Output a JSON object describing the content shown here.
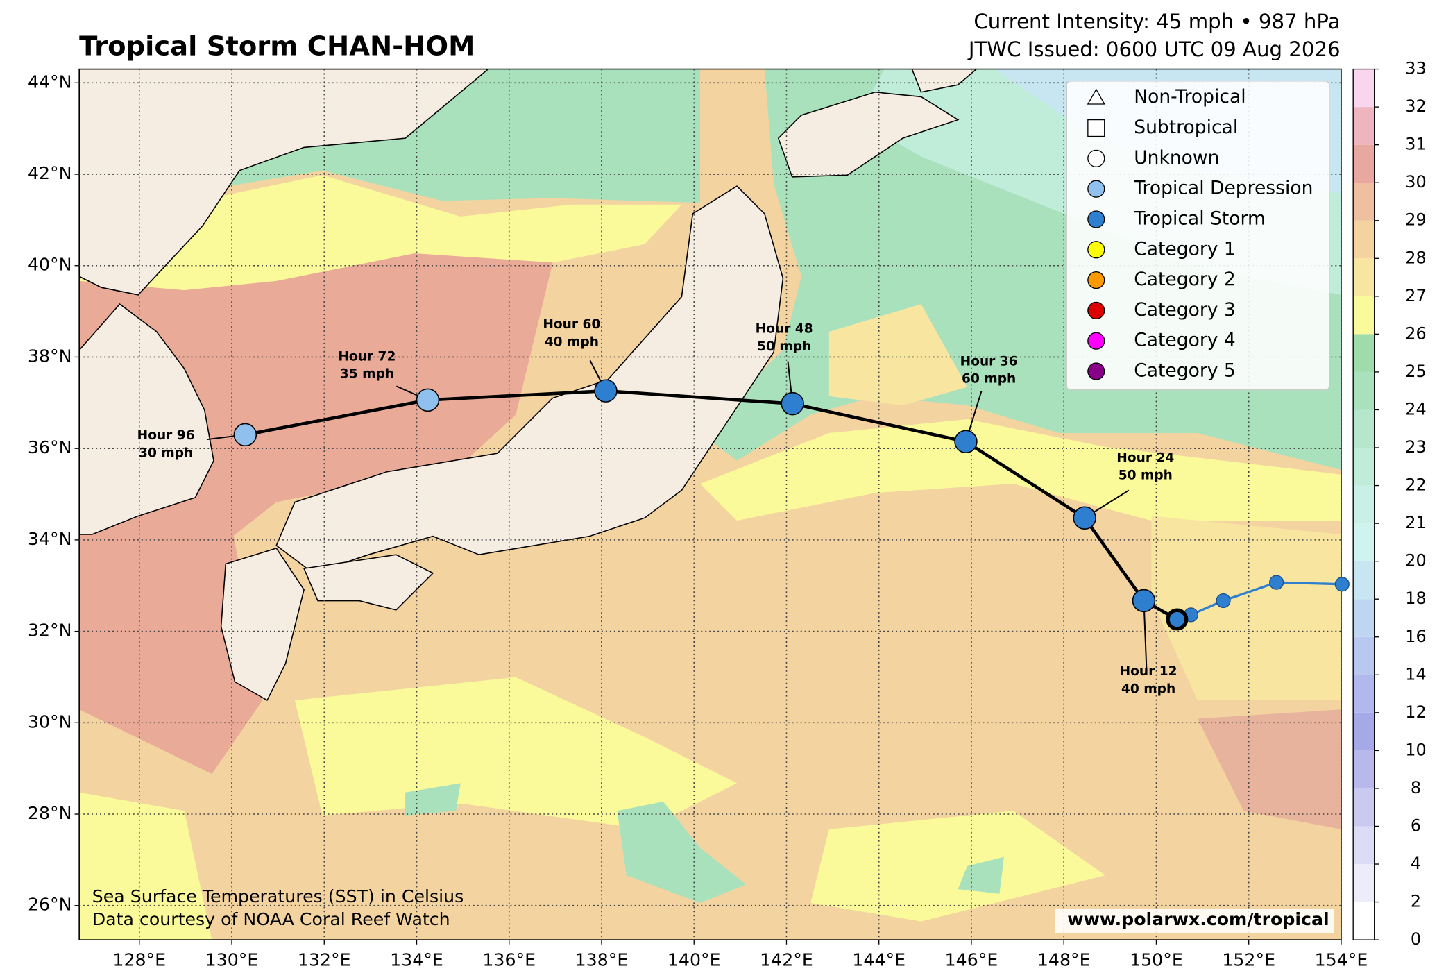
{
  "header": {
    "title": "Tropical Storm CHAN-HOM",
    "intensity": "Current Intensity: 45 mph • 987 hPa",
    "issued": "JTWC Issued: 0600 UTC 09 Aug 2026"
  },
  "map": {
    "lon_range": [
      126.7,
      154.0
    ],
    "lat_range": [
      25.25,
      44.3
    ],
    "grid": true,
    "land_color": "#f5ede2",
    "lon_ticks": [
      {
        "value": 128,
        "label": "128°E"
      },
      {
        "value": 130,
        "label": "130°E"
      },
      {
        "value": 132,
        "label": "132°E"
      },
      {
        "value": 134,
        "label": "134°E"
      },
      {
        "value": 136,
        "label": "136°E"
      },
      {
        "value": 138,
        "label": "138°E"
      },
      {
        "value": 140,
        "label": "140°E"
      },
      {
        "value": 142,
        "label": "142°E"
      },
      {
        "value": 144,
        "label": "144°E"
      },
      {
        "value": 146,
        "label": "146°E"
      },
      {
        "value": 148,
        "label": "148°E"
      },
      {
        "value": 150,
        "label": "150°E"
      },
      {
        "value": 152,
        "label": "152°E"
      },
      {
        "value": 154,
        "label": "154°E"
      }
    ],
    "lat_ticks": [
      {
        "value": 26,
        "label": "26°N"
      },
      {
        "value": 28,
        "label": "28°N"
      },
      {
        "value": 30,
        "label": "30°N"
      },
      {
        "value": 32,
        "label": "32°N"
      },
      {
        "value": 34,
        "label": "34°N"
      },
      {
        "value": 36,
        "label": "36°N"
      },
      {
        "value": 38,
        "label": "38°N"
      },
      {
        "value": 40,
        "label": "40°N"
      },
      {
        "value": 42,
        "label": "42°N"
      },
      {
        "value": 44,
        "label": "44°N"
      }
    ]
  },
  "colorbar": {
    "bounds": [
      0,
      2,
      4,
      6,
      8,
      10,
      12,
      14,
      16,
      18,
      20,
      21,
      22,
      23,
      24,
      25,
      26,
      27,
      28,
      29,
      30,
      31,
      32,
      33
    ],
    "colors": [
      "#ffffff",
      "#ececfb",
      "#dcdcf6",
      "#cacaf1",
      "#b8b8ed",
      "#a6a9e8",
      "#b0b8ee",
      "#b9c8f1",
      "#bed6f1",
      "#c7e6f1",
      "#cff4f0",
      "#c9f0e6",
      "#c0ecda",
      "#b6e6cc",
      "#a9e1bd",
      "#9edcac",
      "#fafa9a",
      "#f8e6a0",
      "#f4d3a0",
      "#f0bf9f",
      "#e8a89f",
      "#eeb5c1",
      "#f9d5ee"
    ]
  },
  "legend": {
    "entries": [
      {
        "name": "Non-Tropical",
        "marker": "triangle",
        "color": "#ffffff"
      },
      {
        "name": "Subtropical",
        "marker": "square",
        "color": "#ffffff"
      },
      {
        "name": "Unknown",
        "marker": "circle",
        "color": "#ffffff"
      },
      {
        "name": "Tropical Depression",
        "marker": "circle",
        "color": "#8fc0ee"
      },
      {
        "name": "Tropical Storm",
        "marker": "circle",
        "color": "#2f7fd0"
      },
      {
        "name": "Category 1",
        "marker": "circle",
        "color": "#ffff00"
      },
      {
        "name": "Category 2",
        "marker": "circle",
        "color": "#ff9900"
      },
      {
        "name": "Category 3",
        "marker": "circle",
        "color": "#dd0000"
      },
      {
        "name": "Category 4",
        "marker": "circle",
        "color": "#ff00ff"
      },
      {
        "name": "Category 5",
        "marker": "circle",
        "color": "#880088"
      }
    ]
  },
  "forecast_track": {
    "color": "#000000",
    "points": [
      {
        "lon": 150.45,
        "lat": 32.26,
        "color": "#2f7fd0"
      },
      {
        "hour": "Hour 12",
        "wind": "40 mph",
        "lon": 149.73,
        "lat": 32.67,
        "color": "#2f7fd0"
      },
      {
        "hour": "Hour 24",
        "wind": "50 mph",
        "lon": 148.45,
        "lat": 34.48,
        "color": "#2f7fd0"
      },
      {
        "hour": "Hour 36",
        "wind": "60 mph",
        "lon": 145.88,
        "lat": 36.15,
        "color": "#2f7fd0"
      },
      {
        "hour": "Hour 48",
        "wind": "50 mph",
        "lon": 142.13,
        "lat": 36.98,
        "color": "#2f7fd0"
      },
      {
        "hour": "Hour 60",
        "wind": "40 mph",
        "lon": 138.09,
        "lat": 37.26,
        "color": "#2f7fd0"
      },
      {
        "hour": "Hour 72",
        "wind": "35 mph",
        "lon": 134.24,
        "lat": 37.06,
        "color": "#8fc0ee"
      },
      {
        "hour": "Hour 96",
        "wind": "30 mph",
        "lon": 130.29,
        "lat": 36.3,
        "color": "#8fc0ee"
      }
    ]
  },
  "past_track": {
    "color": "#2f7fd0",
    "points": [
      {
        "lon": 154.02,
        "lat": 33.03
      },
      {
        "lon": 152.6,
        "lat": 33.07
      },
      {
        "lon": 151.45,
        "lat": 32.67
      },
      {
        "lon": 150.75,
        "lat": 32.36
      },
      {
        "lon": 150.45,
        "lat": 32.26
      }
    ]
  },
  "footnote": [
    "Sea Surface Temperatures (SST) in Celsius",
    "Data courtesy of NOAA Coral Reef Watch"
  ],
  "credit": "www.polarwx.com/tropical"
}
